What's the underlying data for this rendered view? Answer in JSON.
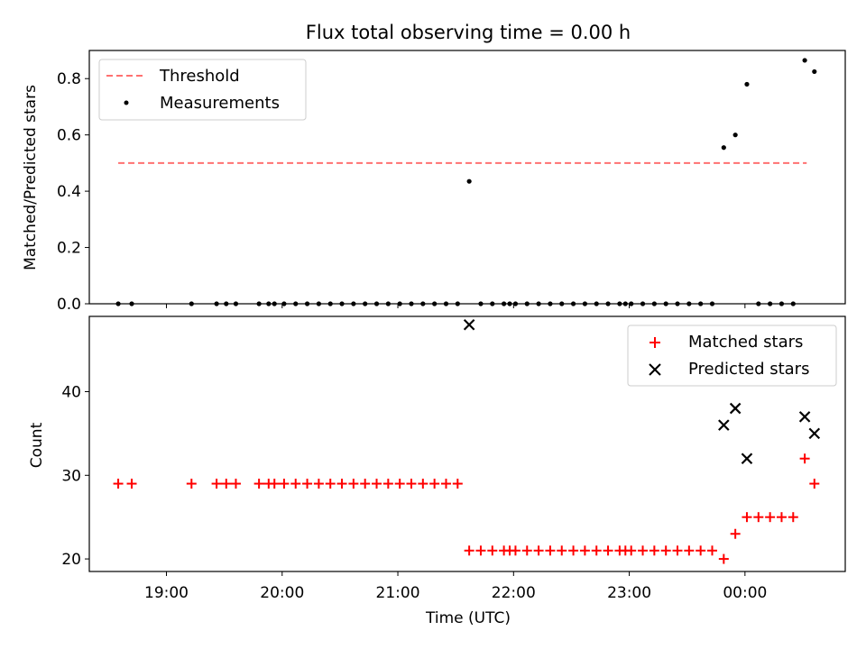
{
  "chart_data": [
    {
      "type": "scatter",
      "title": "Flux total observing time = 0.00 h",
      "ylabel": "Matched/Predicted stars",
      "xlabel": "",
      "ylim": [
        0,
        0.9
      ],
      "yticks": [
        0.0,
        0.2,
        0.4,
        0.6,
        0.8
      ],
      "ytick_labels": [
        "0.0",
        "0.2",
        "0.4",
        "0.6",
        "0.8"
      ],
      "legend_position": "upper-left",
      "threshold": {
        "name": "Threshold",
        "value": 0.5,
        "x_range": [
          "18:35",
          "00:32"
        ],
        "color": "#ff7070"
      },
      "series": [
        {
          "name": "Measurements",
          "color": "#000000",
          "points": [
            [
              "18:35",
              0
            ],
            [
              "18:42",
              0
            ],
            [
              "19:13",
              0
            ],
            [
              "19:26",
              0
            ],
            [
              "19:31",
              0
            ],
            [
              "19:36",
              0
            ],
            [
              "19:48",
              0
            ],
            [
              "19:53",
              0
            ],
            [
              "19:56",
              0
            ],
            [
              "20:01",
              0
            ],
            [
              "20:07",
              0
            ],
            [
              "20:13",
              0
            ],
            [
              "20:19",
              0
            ],
            [
              "20:25",
              0
            ],
            [
              "20:31",
              0
            ],
            [
              "20:37",
              0
            ],
            [
              "20:43",
              0
            ],
            [
              "20:49",
              0
            ],
            [
              "20:55",
              0
            ],
            [
              "21:01",
              0
            ],
            [
              "21:07",
              0
            ],
            [
              "21:13",
              0
            ],
            [
              "21:19",
              0
            ],
            [
              "21:25",
              0
            ],
            [
              "21:31",
              0
            ],
            [
              "21:37",
              0.435
            ],
            [
              "21:43",
              0
            ],
            [
              "21:49",
              0
            ],
            [
              "21:55",
              0
            ],
            [
              "21:58",
              0
            ],
            [
              "22:01",
              0
            ],
            [
              "22:07",
              0
            ],
            [
              "22:13",
              0
            ],
            [
              "22:19",
              0
            ],
            [
              "22:25",
              0
            ],
            [
              "22:31",
              0
            ],
            [
              "22:37",
              0
            ],
            [
              "22:43",
              0
            ],
            [
              "22:49",
              0
            ],
            [
              "22:55",
              0
            ],
            [
              "22:58",
              0
            ],
            [
              "23:01",
              0
            ],
            [
              "23:07",
              0
            ],
            [
              "23:13",
              0
            ],
            [
              "23:19",
              0
            ],
            [
              "23:25",
              0
            ],
            [
              "23:31",
              0
            ],
            [
              "23:37",
              0
            ],
            [
              "23:43",
              0
            ],
            [
              "23:49",
              0.555
            ],
            [
              "23:55",
              0.6
            ],
            [
              "00:01",
              0.78
            ],
            [
              "00:07",
              0
            ],
            [
              "00:13",
              0
            ],
            [
              "00:19",
              0
            ],
            [
              "00:25",
              0
            ],
            [
              "00:31",
              0.865
            ],
            [
              "00:36",
              0.825
            ]
          ]
        }
      ]
    },
    {
      "type": "scatter",
      "title": "",
      "ylabel": "Count",
      "xlabel": "Time (UTC)",
      "ylim": [
        18.5,
        49
      ],
      "yticks": [
        20,
        30,
        40
      ],
      "ytick_labels": [
        "20",
        "30",
        "40"
      ],
      "xticks": [
        "19:00",
        "20:00",
        "21:00",
        "22:00",
        "23:00",
        "00:00"
      ],
      "xlim": [
        "18:20",
        "00:52"
      ],
      "legend_position": "upper-right",
      "series": [
        {
          "name": "Matched stars",
          "marker": "plus",
          "color": "#ff0000",
          "points": [
            [
              "18:35",
              29
            ],
            [
              "18:42",
              29
            ],
            [
              "19:13",
              29
            ],
            [
              "19:26",
              29
            ],
            [
              "19:31",
              29
            ],
            [
              "19:36",
              29
            ],
            [
              "19:48",
              29
            ],
            [
              "19:53",
              29
            ],
            [
              "19:56",
              29
            ],
            [
              "20:01",
              29
            ],
            [
              "20:07",
              29
            ],
            [
              "20:13",
              29
            ],
            [
              "20:19",
              29
            ],
            [
              "20:25",
              29
            ],
            [
              "20:31",
              29
            ],
            [
              "20:37",
              29
            ],
            [
              "20:43",
              29
            ],
            [
              "20:49",
              29
            ],
            [
              "20:55",
              29
            ],
            [
              "21:01",
              29
            ],
            [
              "21:07",
              29
            ],
            [
              "21:13",
              29
            ],
            [
              "21:19",
              29
            ],
            [
              "21:25",
              29
            ],
            [
              "21:31",
              29
            ],
            [
              "21:37",
              21
            ],
            [
              "21:43",
              21
            ],
            [
              "21:49",
              21
            ],
            [
              "21:55",
              21
            ],
            [
              "21:58",
              21
            ],
            [
              "22:01",
              21
            ],
            [
              "22:07",
              21
            ],
            [
              "22:13",
              21
            ],
            [
              "22:19",
              21
            ],
            [
              "22:25",
              21
            ],
            [
              "22:31",
              21
            ],
            [
              "22:37",
              21
            ],
            [
              "22:43",
              21
            ],
            [
              "22:49",
              21
            ],
            [
              "22:55",
              21
            ],
            [
              "22:58",
              21
            ],
            [
              "23:01",
              21
            ],
            [
              "23:07",
              21
            ],
            [
              "23:13",
              21
            ],
            [
              "23:19",
              21
            ],
            [
              "23:25",
              21
            ],
            [
              "23:31",
              21
            ],
            [
              "23:37",
              21
            ],
            [
              "23:43",
              21
            ],
            [
              "23:49",
              20
            ],
            [
              "23:55",
              23
            ],
            [
              "00:01",
              25
            ],
            [
              "00:07",
              25
            ],
            [
              "00:13",
              25
            ],
            [
              "00:19",
              25
            ],
            [
              "00:25",
              25
            ],
            [
              "00:31",
              32
            ],
            [
              "00:36",
              29
            ]
          ]
        },
        {
          "name": "Predicted stars",
          "marker": "x",
          "color": "#000000",
          "points": [
            [
              "21:37",
              48
            ],
            [
              "23:49",
              36
            ],
            [
              "23:55",
              38
            ],
            [
              "00:01",
              32
            ],
            [
              "00:31",
              37
            ],
            [
              "00:36",
              35
            ]
          ]
        }
      ]
    }
  ]
}
